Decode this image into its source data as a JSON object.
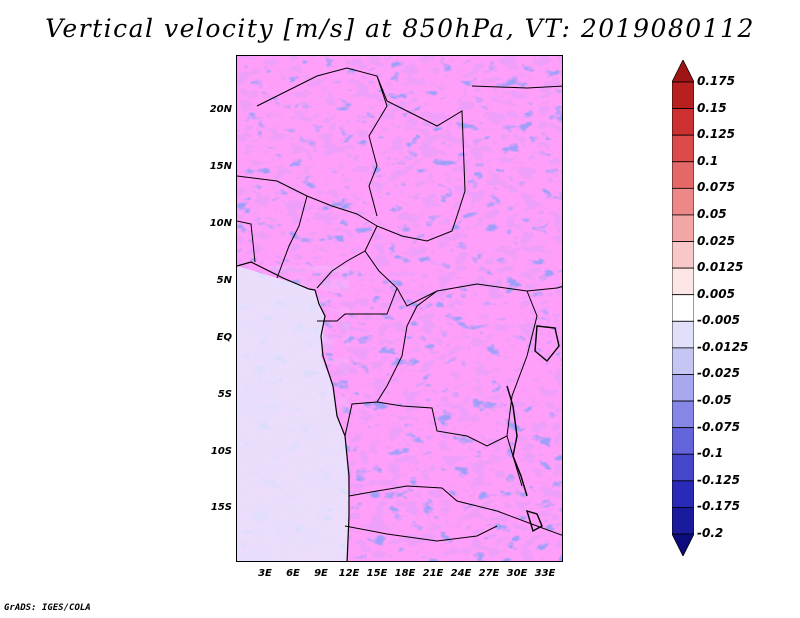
{
  "title": "Vertical velocity [m/s] at 850hPa, VT: 2019080112",
  "credit": "GrADS: IGES/COLA",
  "map": {
    "lat_labels": [
      "20N",
      "15N",
      "10N",
      "5N",
      "EQ",
      "5S",
      "10S",
      "15S"
    ],
    "lat_values": [
      20,
      15,
      10,
      5,
      0,
      -5,
      -10,
      -15
    ],
    "lon_labels": [
      "3E",
      "6E",
      "9E",
      "12E",
      "15E",
      "18E",
      "21E",
      "24E",
      "27E",
      "30E",
      "33E"
    ],
    "lon_values": [
      3,
      6,
      9,
      12,
      15,
      18,
      21,
      24,
      27,
      30,
      33
    ],
    "lat_range": [
      -20,
      24.5
    ],
    "lon_range": [
      0.5,
      35
    ],
    "variable": "vertical velocity",
    "units": "m/s",
    "level": "850hPa",
    "valid_time": "2019080112"
  },
  "colorbar": {
    "labels": [
      "0.175",
      "0.15",
      "0.125",
      "0.1",
      "0.075",
      "0.05",
      "0.025",
      "0.0125",
      "0.005",
      "-0.005",
      "-0.0125",
      "-0.025",
      "-0.05",
      "-0.075",
      "-0.1",
      "-0.125",
      "-0.175",
      "-0.2"
    ],
    "colors": [
      "#a01414",
      "#b82020",
      "#cc3030",
      "#dc4a4a",
      "#e46868",
      "#ec8888",
      "#f2a6a6",
      "#f8c8c8",
      "#fce6e6",
      "#ffffff",
      "#e0e0fa",
      "#c6c6f4",
      "#a8a8ee",
      "#8686e6",
      "#6464dc",
      "#4646cc",
      "#2a2ab8",
      "#1a1a9c",
      "#0c0c7c"
    ]
  }
}
